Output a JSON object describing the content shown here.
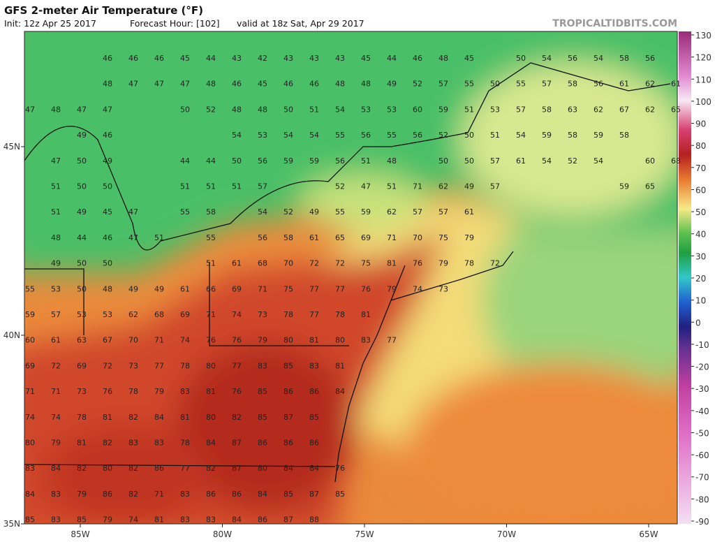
{
  "header": {
    "title": "GFS 2-meter Air Temperature (°F)",
    "init": "Init: 12z Apr 25 2017",
    "forecast_hour": "Forecast Hour: [102]",
    "valid": "valid at 18z Sat, Apr 29 2017",
    "site": "TROPICALTIDBITS.COM"
  },
  "map": {
    "longitude_labels": [
      "85W",
      "80W",
      "75W",
      "70W",
      "65W"
    ],
    "latitude_labels": [
      "45N",
      "40N",
      "35N"
    ],
    "station_values": [
      [
        null,
        null,
        null,
        46,
        46,
        46,
        45,
        44,
        43,
        42,
        43,
        43,
        43,
        45,
        44,
        46,
        48,
        45,
        null,
        50,
        54,
        56,
        54,
        58,
        56,
        null
      ],
      [
        null,
        null,
        null,
        48,
        47,
        47,
        47,
        48,
        46,
        45,
        46,
        46,
        48,
        48,
        49,
        52,
        57,
        55,
        50,
        55,
        57,
        58,
        56,
        61,
        62,
        61
      ],
      [
        47,
        48,
        47,
        47,
        null,
        null,
        50,
        52,
        48,
        48,
        50,
        51,
        54,
        53,
        53,
        60,
        59,
        51,
        53,
        57,
        58,
        63,
        62,
        67,
        62,
        65
      ],
      [
        null,
        null,
        49,
        46,
        null,
        null,
        null,
        null,
        54,
        53,
        54,
        54,
        55,
        56,
        55,
        56,
        52,
        50,
        51,
        54,
        59,
        58,
        59,
        58,
        null,
        null
      ],
      [
        null,
        47,
        50,
        49,
        null,
        null,
        44,
        44,
        50,
        56,
        59,
        59,
        56,
        51,
        48,
        null,
        50,
        50,
        57,
        61,
        54,
        52,
        54,
        null,
        60,
        68
      ],
      [
        null,
        51,
        50,
        50,
        null,
        null,
        51,
        51,
        51,
        57,
        null,
        null,
        52,
        47,
        51,
        71,
        62,
        49,
        57,
        null,
        null,
        null,
        null,
        59,
        65,
        null
      ],
      [
        null,
        51,
        49,
        45,
        47,
        null,
        55,
        58,
        null,
        54,
        52,
        49,
        55,
        59,
        62,
        57,
        57,
        61,
        null,
        null,
        null,
        null,
        null,
        null,
        null,
        null
      ],
      [
        null,
        48,
        44,
        46,
        47,
        51,
        null,
        55,
        null,
        56,
        58,
        61,
        65,
        69,
        71,
        70,
        75,
        79,
        null,
        null,
        null,
        null,
        null,
        null,
        null,
        null
      ],
      [
        null,
        49,
        50,
        50,
        null,
        null,
        null,
        51,
        61,
        68,
        70,
        72,
        72,
        75,
        81,
        76,
        79,
        78,
        72,
        null,
        null,
        null,
        null,
        null,
        null,
        null
      ],
      [
        55,
        53,
        50,
        48,
        49,
        49,
        61,
        66,
        69,
        71,
        75,
        77,
        77,
        76,
        79,
        74,
        73,
        null,
        null,
        null,
        null,
        null,
        null,
        null,
        null,
        null
      ],
      [
        59,
        57,
        53,
        53,
        62,
        68,
        69,
        71,
        74,
        73,
        78,
        77,
        78,
        81,
        null,
        null,
        null,
        null,
        null,
        null,
        null,
        null,
        null,
        null,
        null,
        null
      ],
      [
        60,
        61,
        63,
        67,
        70,
        71,
        74,
        76,
        76,
        79,
        80,
        81,
        80,
        83,
        77,
        null,
        null,
        null,
        null,
        null,
        null,
        null,
        null,
        null,
        null,
        null
      ],
      [
        69,
        72,
        69,
        72,
        73,
        77,
        78,
        80,
        77,
        83,
        85,
        83,
        81,
        null,
        null,
        null,
        null,
        null,
        null,
        null,
        null,
        null,
        null,
        null,
        null,
        null
      ],
      [
        71,
        71,
        73,
        76,
        78,
        79,
        83,
        81,
        76,
        85,
        86,
        86,
        84,
        null,
        null,
        null,
        null,
        null,
        null,
        null,
        null,
        null,
        null,
        null,
        null,
        null
      ],
      [
        74,
        74,
        78,
        81,
        82,
        84,
        81,
        80,
        82,
        85,
        87,
        85,
        null,
        null,
        null,
        null,
        null,
        null,
        null,
        null,
        null,
        null,
        null,
        null,
        null,
        null
      ],
      [
        80,
        79,
        81,
        82,
        83,
        83,
        78,
        84,
        87,
        86,
        86,
        86,
        null,
        null,
        null,
        null,
        null,
        null,
        null,
        null,
        null,
        null,
        null,
        null,
        null,
        null
      ],
      [
        83,
        84,
        82,
        80,
        82,
        86,
        77,
        82,
        87,
        80,
        84,
        84,
        76,
        null,
        null,
        null,
        null,
        null,
        null,
        null,
        null,
        null,
        null,
        null,
        null,
        null
      ],
      [
        84,
        83,
        79,
        86,
        82,
        71,
        83,
        86,
        86,
        84,
        85,
        87,
        85,
        null,
        null,
        null,
        null,
        null,
        null,
        null,
        null,
        null,
        null,
        null,
        null,
        null
      ],
      [
        85,
        83,
        85,
        79,
        74,
        81,
        83,
        83,
        84,
        86,
        87,
        88,
        null,
        null,
        null,
        null,
        null,
        null,
        null,
        null,
        null,
        null,
        null,
        null,
        null,
        null
      ]
    ]
  },
  "colorbar": {
    "ticks": [
      130,
      120,
      110,
      100,
      90,
      80,
      70,
      60,
      50,
      40,
      30,
      20,
      10,
      0,
      -10,
      -20,
      -30,
      -40,
      -50,
      -60,
      -70,
      -80,
      -90
    ]
  }
}
